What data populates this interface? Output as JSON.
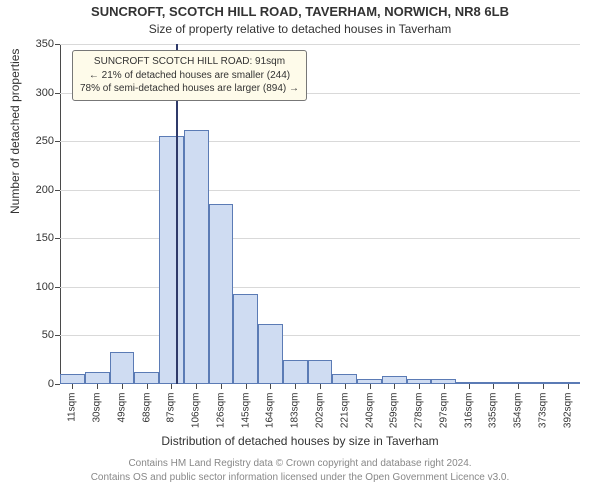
{
  "chart": {
    "type": "histogram",
    "title_line1": "SUNCROFT, SCOTCH HILL ROAD, TAVERHAM, NORWICH, NR8 6LB",
    "title_line2": "Size of property relative to detached houses in Taverham",
    "xlabel": "Distribution of detached houses by size in Taverham",
    "ylabel": "Number of detached properties",
    "background_color": "#ffffff",
    "grid_color": "#d9d9d9",
    "axis_color": "#4a4a4a",
    "text_color": "#333333",
    "bar_fill": "#cfdcf2",
    "bar_border": "#5b7bb5",
    "marker_color": "#2f3a6a",
    "annotation_bg": "#fefbea",
    "annotation_border": "#777777",
    "title_fontsize": 13,
    "subtitle_fontsize": 12,
    "label_fontsize": 12,
    "tick_fontsize": 11,
    "annotation_fontsize": 10,
    "footer_fontsize": 10,
    "footer_color": "#888888",
    "ylim": [
      0,
      350
    ],
    "ytick_step": 50,
    "bar_width_ratio": 1.0,
    "categories": [
      "11sqm",
      "30sqm",
      "49sqm",
      "68sqm",
      "87sqm",
      "106sqm",
      "126sqm",
      "145sqm",
      "164sqm",
      "183sqm",
      "202sqm",
      "221sqm",
      "240sqm",
      "259sqm",
      "278sqm",
      "297sqm",
      "316sqm",
      "335sqm",
      "354sqm",
      "373sqm",
      "392sqm"
    ],
    "values": [
      10,
      12,
      33,
      12,
      255,
      262,
      185,
      93,
      62,
      25,
      25,
      10,
      5,
      8,
      5,
      5,
      2,
      2,
      2,
      2,
      2
    ],
    "marker_value_sqm": 91,
    "annotation": {
      "line1": "SUNCROFT SCOTCH HILL ROAD: 91sqm",
      "line2": "← 21% of detached houses are smaller (244)",
      "line3": "78% of semi-detached houses are larger (894) →"
    },
    "footer_line1": "Contains HM Land Registry data © Crown copyright and database right 2024.",
    "footer_line2": "Contains OS and public sector information licensed under the Open Government Licence v3.0."
  }
}
